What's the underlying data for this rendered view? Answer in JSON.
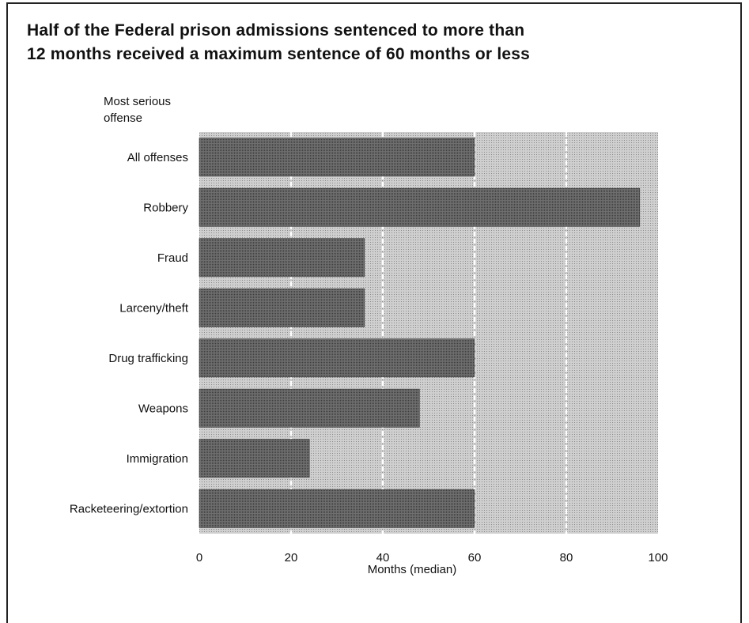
{
  "title_lines": [
    "Half of the Federal prison admissions sentenced to more than",
    "12 months received a maximum sentence of 60 months or less"
  ],
  "chart_data": {
    "type": "bar",
    "orientation": "horizontal",
    "title": "Half of the Federal prison admissions sentenced to more than 12 months received a maximum sentence of 60 months or less",
    "ylabel_lines": [
      "Most serious",
      "offense"
    ],
    "xlabel": "Months (median)",
    "categories": [
      "All offenses",
      "Robbery",
      "Fraud",
      "Larceny/theft",
      "Drug trafficking",
      "Weapons",
      "Immigration",
      "Racketeering/extortion"
    ],
    "values": [
      60,
      96,
      36,
      36,
      60,
      48,
      24,
      60
    ],
    "xlim": [
      0,
      100
    ],
    "xticks": [
      0,
      20,
      40,
      60,
      80,
      100
    ],
    "grid": true,
    "colors": {
      "plot_bg": "#c4c4c4",
      "bar": "#616161",
      "grid": "#ffffff"
    }
  }
}
